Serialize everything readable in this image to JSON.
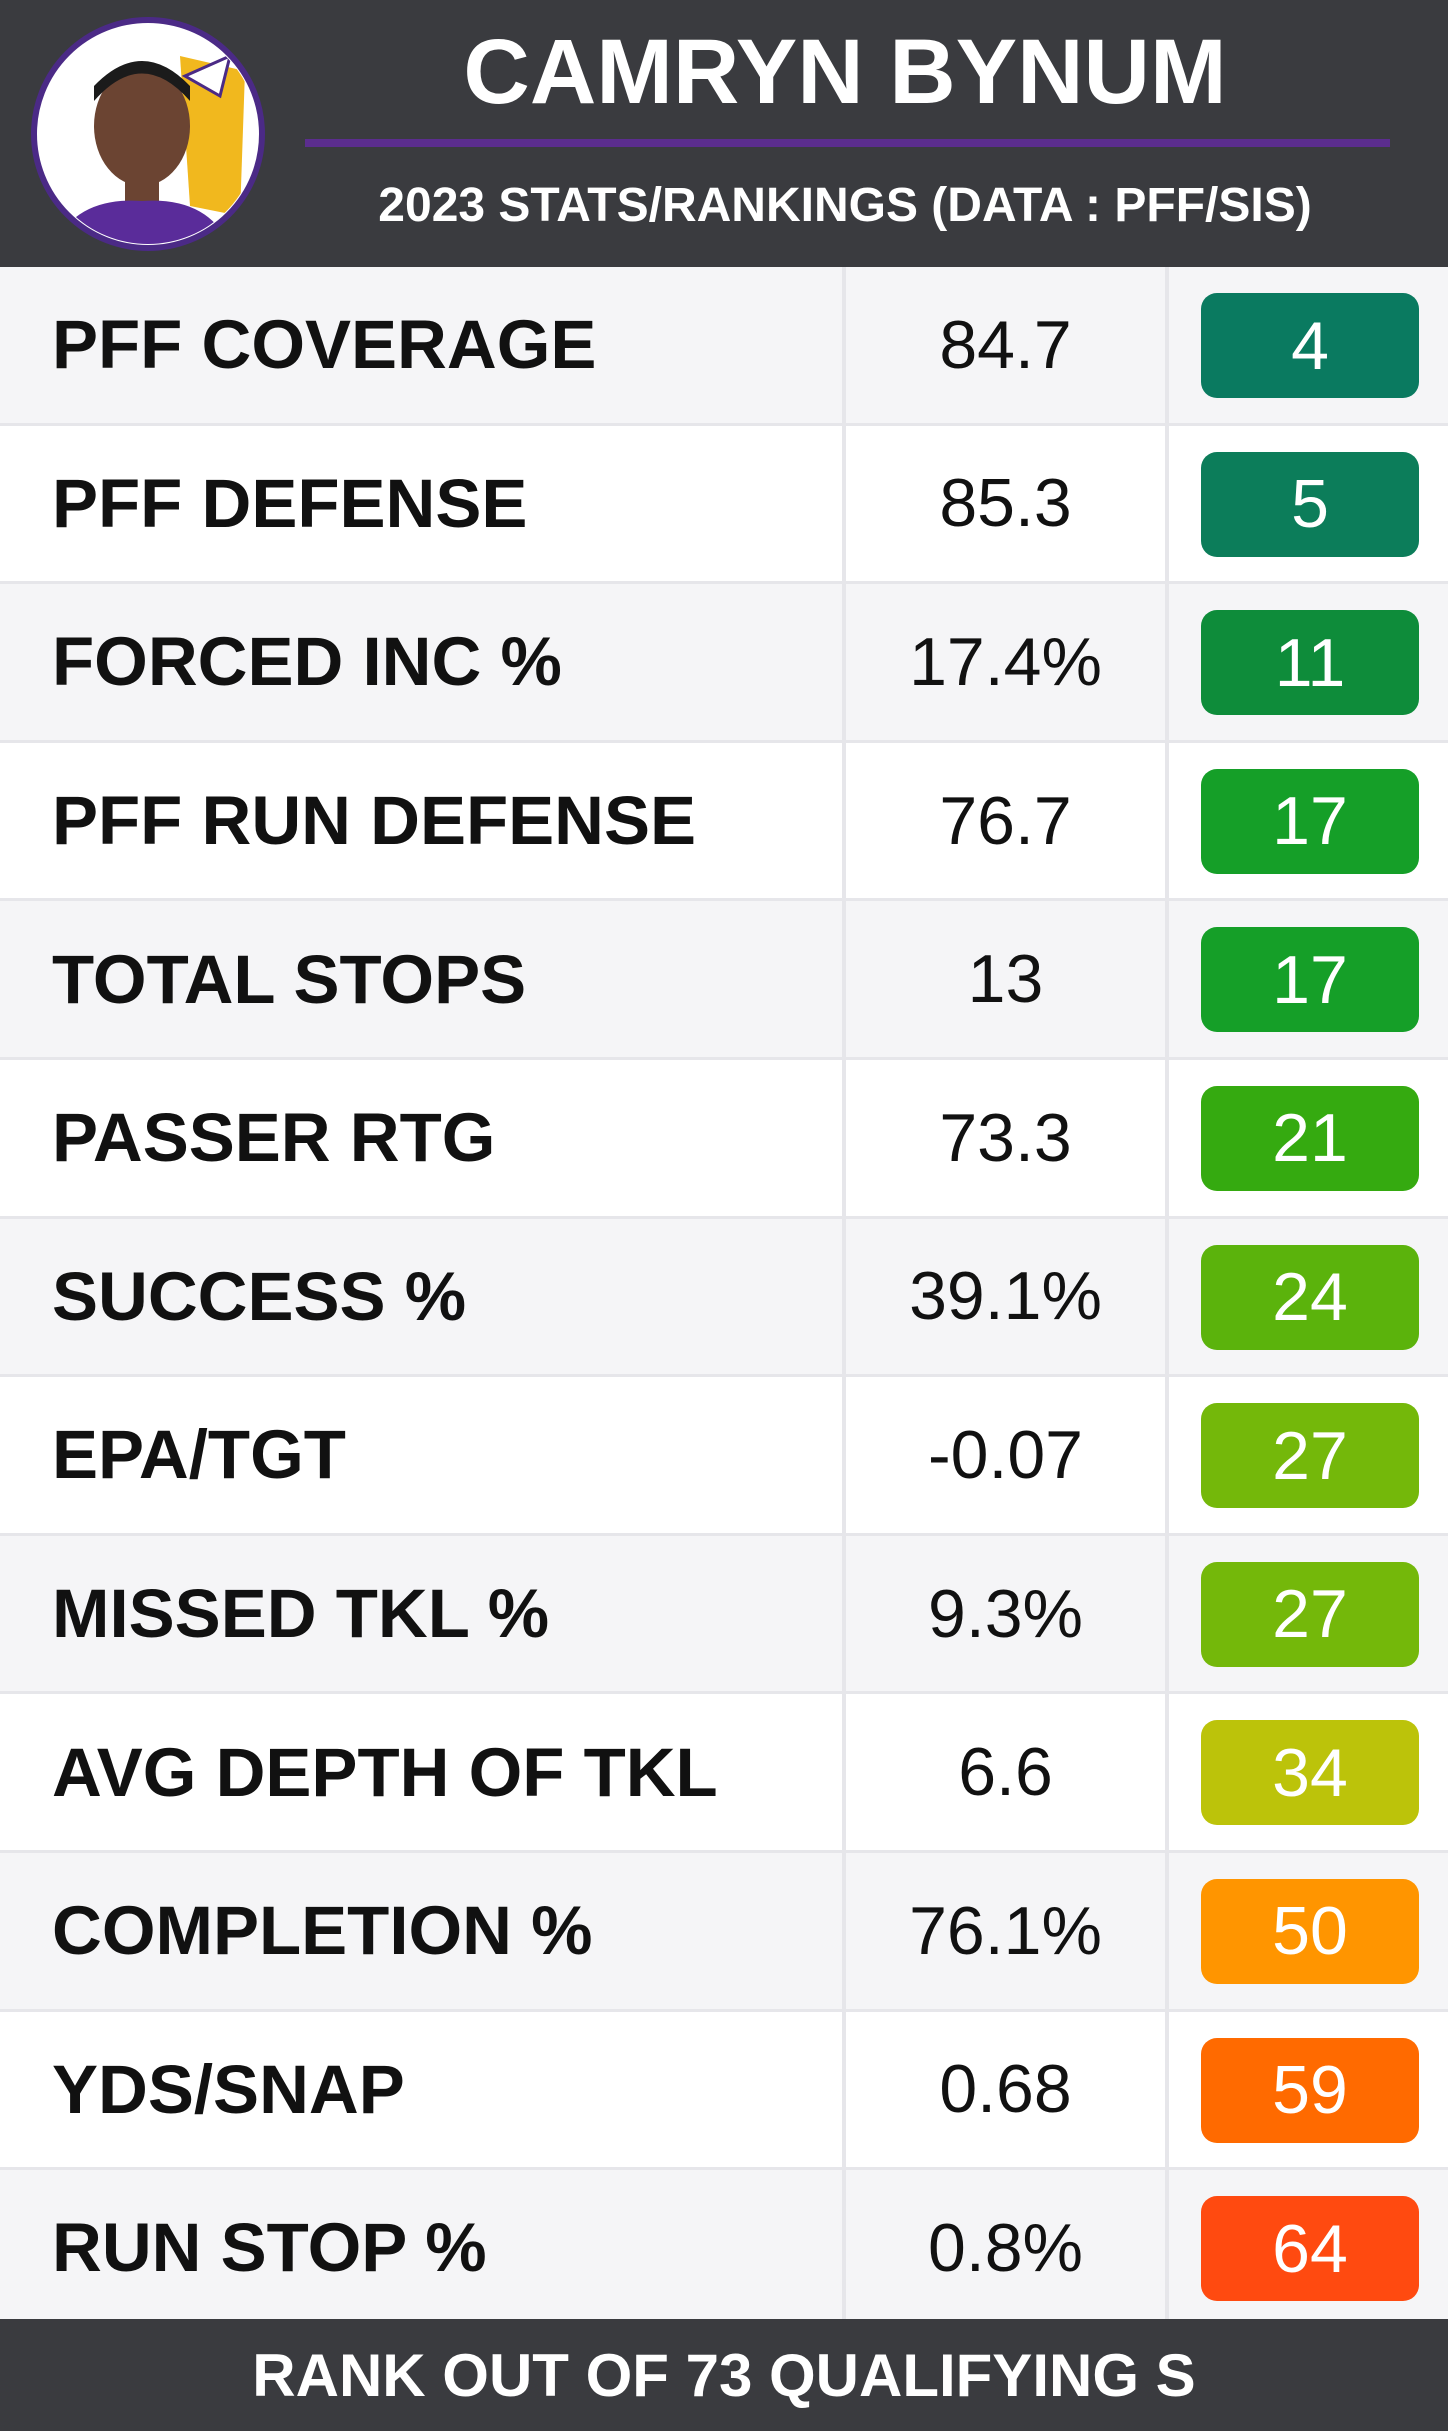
{
  "header": {
    "name": "CAMRYN BYNUM",
    "subtitle": "2023 STATS/RANKINGS (DATA : PFF/SIS)"
  },
  "table": {
    "rows": [
      {
        "stat": "PFF COVERAGE",
        "value": "84.7",
        "rank": 4,
        "color": "#0a7a60"
      },
      {
        "stat": "PFF DEFENSE",
        "value": "85.3",
        "rank": 5,
        "color": "#0c7d5a"
      },
      {
        "stat": "FORCED INC %",
        "value": "17.4%",
        "rank": 11,
        "color": "#0e8c3a"
      },
      {
        "stat": "PFF RUN DEFENSE",
        "value": "76.7",
        "rank": 17,
        "color": "#159f28"
      },
      {
        "stat": "TOTAL STOPS",
        "value": "13",
        "rank": 17,
        "color": "#159f28"
      },
      {
        "stat": "PASSER RTG",
        "value": "73.3",
        "rank": 21,
        "color": "#35aa10"
      },
      {
        "stat": "SUCCESS %",
        "value": "39.1%",
        "rank": 24,
        "color": "#5bb30c"
      },
      {
        "stat": "EPA/TGT",
        "value": "-0.07",
        "rank": 27,
        "color": "#74b80a"
      },
      {
        "stat": "MISSED TKL %",
        "value": "9.3%",
        "rank": 27,
        "color": "#74b80a"
      },
      {
        "stat": "AVG DEPTH OF TKL",
        "value": "6.6",
        "rank": 34,
        "color": "#bcc30a"
      },
      {
        "stat": "COMPLETION %",
        "value": "76.1%",
        "rank": 50,
        "color": "#ff9500"
      },
      {
        "stat": "YDS/SNAP",
        "value": "0.68",
        "rank": 59,
        "color": "#ff6a00"
      },
      {
        "stat": "RUN STOP %",
        "value": "0.8%",
        "rank": 64,
        "color": "#ff4a10"
      }
    ]
  },
  "footer": "RANK OUT OF 73 QUALIFYING S"
}
